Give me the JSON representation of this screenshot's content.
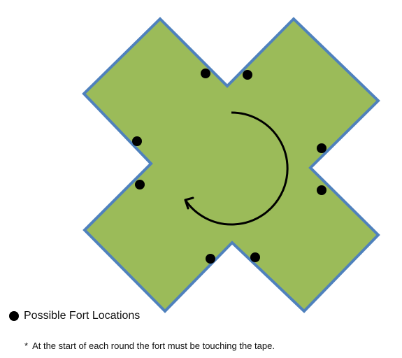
{
  "colors": {
    "shape_fill": "#9bbb59",
    "shape_stroke": "#4f81bd",
    "marker": "#000000",
    "arrow": "#000000"
  },
  "legend": {
    "marker_icon": "filled-circle-icon",
    "label": "Possible Fort Locations"
  },
  "footnote": {
    "mark": "*",
    "text": "At the start of each round the fort must be touching the tape."
  },
  "diagram": {
    "shape": "x-cross",
    "arrow_direction": "clockwise",
    "fort_location_count": 8
  }
}
